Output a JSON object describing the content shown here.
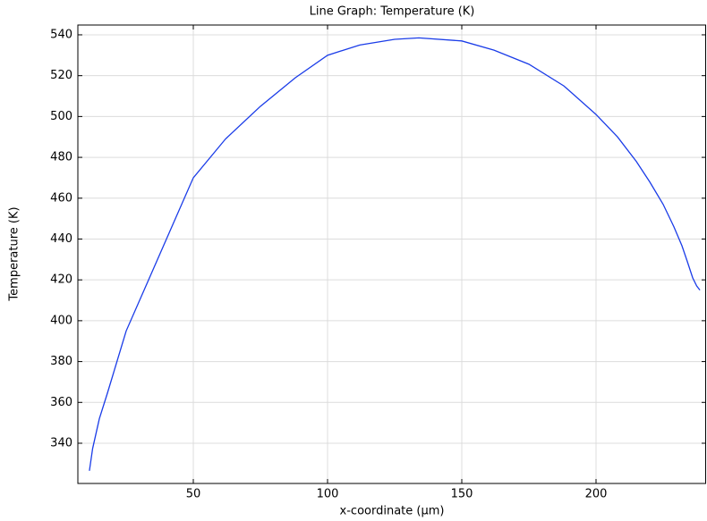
{
  "chart_data": {
    "type": "line",
    "title": "Line Graph: Temperature (K)",
    "x_label": "x-coordinate (µm)",
    "y_label": "Temperature (K)",
    "x": [
      11.3,
      12.5,
      15,
      18,
      25,
      33,
      42,
      50,
      62,
      75,
      88,
      100,
      112,
      125,
      134,
      150,
      162,
      175,
      188,
      200,
      208,
      215,
      220,
      225,
      229,
      232,
      234,
      236,
      237.5,
      238.7
    ],
    "series": [
      {
        "name": "Temperature (K)",
        "color": "#1a3ce8",
        "values": [
          326.5,
          337.4,
          352,
          364.5,
          395,
          419,
          446,
          470,
          489,
          505,
          519,
          530,
          535,
          537.8,
          538.5,
          537,
          532.5,
          525.6,
          515,
          501,
          490,
          478,
          468,
          457,
          446,
          436.7,
          429,
          421,
          417,
          415
        ]
      }
    ],
    "xlim": [
      7,
      241
    ],
    "ylim": [
      320.3,
      544.8
    ],
    "xticks": [
      50,
      100,
      150,
      200
    ],
    "yticks": [
      340,
      360,
      380,
      400,
      420,
      440,
      460,
      480,
      500,
      520,
      540
    ],
    "grid": true
  }
}
